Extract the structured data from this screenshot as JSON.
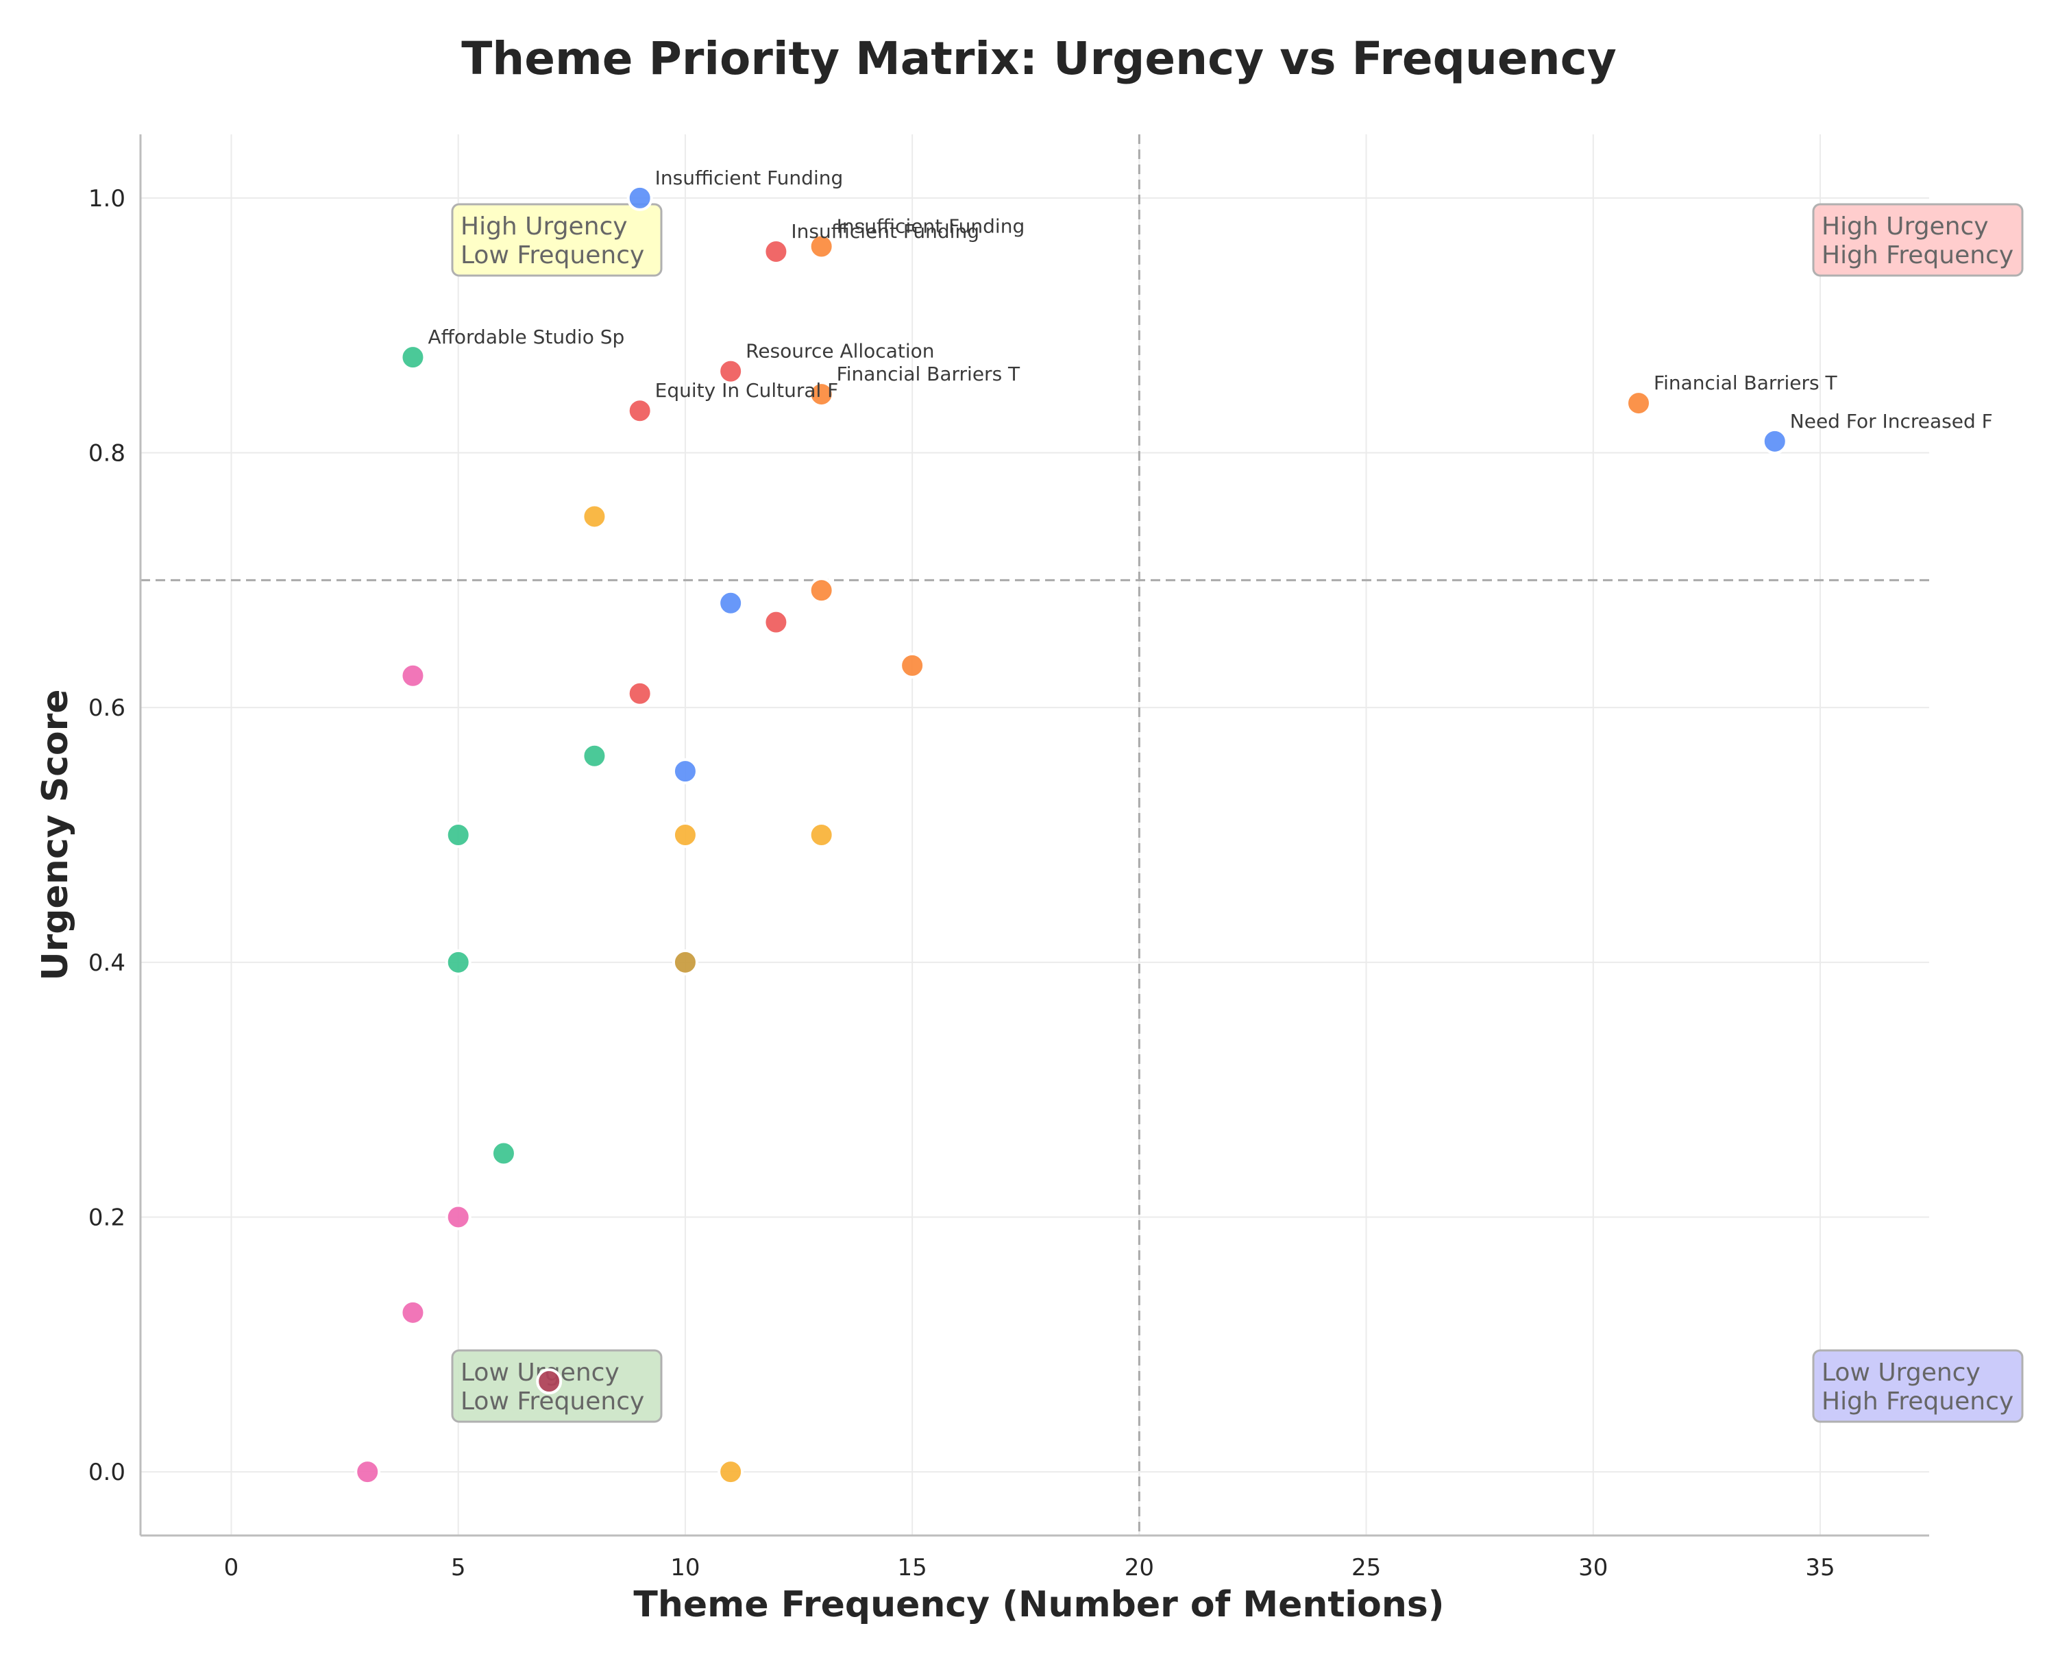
{
  "chart_data": {
    "type": "scatter",
    "title": "Theme Priority Matrix: Urgency vs Frequency",
    "xlabel": "Theme Frequency (Number of Mentions)",
    "ylabel": "Urgency Score",
    "xlim": [
      -2,
      37.4
    ],
    "ylim": [
      -0.05,
      1.05
    ],
    "xticks": [
      0,
      5,
      10,
      15,
      20,
      25,
      30,
      35
    ],
    "yticks": [
      0.0,
      0.2,
      0.4,
      0.6,
      0.8,
      1.0
    ],
    "xtick_labels": [
      "0",
      "5",
      "10",
      "15",
      "20",
      "25",
      "30",
      "35"
    ],
    "ytick_labels": [
      "0.0",
      "0.2",
      "0.4",
      "0.6",
      "0.8",
      "1.0"
    ],
    "grid": true,
    "reference_lines": {
      "x": 20,
      "y": 0.7
    },
    "colors": {
      "blue": "#5b8ff9",
      "red": "#ef5b5b",
      "orange": "#fb8a3c",
      "green": "#3cc48f",
      "yellow": "#f9b236",
      "pink": "#f06ab2",
      "maroon": "#b04058",
      "olive": "#c89a3c"
    },
    "points": [
      {
        "x": 9,
        "y": 1.0,
        "color": "blue",
        "label": "Insufficient Funding"
      },
      {
        "x": 12,
        "y": 0.958,
        "color": "red",
        "label": "Insufficient Funding"
      },
      {
        "x": 13,
        "y": 0.962,
        "color": "orange",
        "label": "Insufficient Funding"
      },
      {
        "x": 4,
        "y": 0.875,
        "color": "green",
        "label": "Affordable Studio Sp"
      },
      {
        "x": 11,
        "y": 0.864,
        "color": "red",
        "label": "Resource Allocation"
      },
      {
        "x": 13,
        "y": 0.846,
        "color": "orange",
        "label": "Financial Barriers T"
      },
      {
        "x": 9,
        "y": 0.833,
        "color": "red",
        "label": "Equity In Cultural F"
      },
      {
        "x": 31,
        "y": 0.839,
        "color": "orange",
        "label": "Financial Barriers T"
      },
      {
        "x": 34,
        "y": 0.809,
        "color": "blue",
        "label": "Need For Increased F"
      },
      {
        "x": 8,
        "y": 0.75,
        "color": "yellow"
      },
      {
        "x": 13,
        "y": 0.692,
        "color": "orange"
      },
      {
        "x": 11,
        "y": 0.682,
        "color": "blue"
      },
      {
        "x": 12,
        "y": 0.667,
        "color": "red"
      },
      {
        "x": 15,
        "y": 0.633,
        "color": "orange"
      },
      {
        "x": 4,
        "y": 0.625,
        "color": "pink"
      },
      {
        "x": 9,
        "y": 0.611,
        "color": "red"
      },
      {
        "x": 8,
        "y": 0.562,
        "color": "green"
      },
      {
        "x": 10,
        "y": 0.55,
        "color": "blue"
      },
      {
        "x": 5,
        "y": 0.5,
        "color": "green"
      },
      {
        "x": 10,
        "y": 0.5,
        "color": "yellow"
      },
      {
        "x": 13,
        "y": 0.5,
        "color": "yellow"
      },
      {
        "x": 5,
        "y": 0.4,
        "color": "green"
      },
      {
        "x": 10,
        "y": 0.4,
        "color": "olive"
      },
      {
        "x": 6,
        "y": 0.25,
        "color": "green"
      },
      {
        "x": 5,
        "y": 0.2,
        "color": "pink"
      },
      {
        "x": 4,
        "y": 0.125,
        "color": "pink"
      },
      {
        "x": 7,
        "y": 0.071,
        "color": "maroon"
      },
      {
        "x": 3,
        "y": 0.0,
        "color": "pink"
      },
      {
        "x": 11,
        "y": 0.0,
        "color": "yellow"
      }
    ],
    "quadrants": [
      {
        "id": "hu-lf",
        "line1": "High Urgency",
        "line2": "Low Frequency",
        "fill": "#ffffc4"
      },
      {
        "id": "hu-hf",
        "line1": "High Urgency",
        "line2": "High Frequency",
        "fill": "#ffcaca"
      },
      {
        "id": "lu-lf",
        "line1": "Low Urgency",
        "line2": "Low Frequency",
        "fill": "#cde6c8"
      },
      {
        "id": "lu-hf",
        "line1": "Low Urgency",
        "line2": "High Frequency",
        "fill": "#c8c8fa"
      }
    ]
  }
}
